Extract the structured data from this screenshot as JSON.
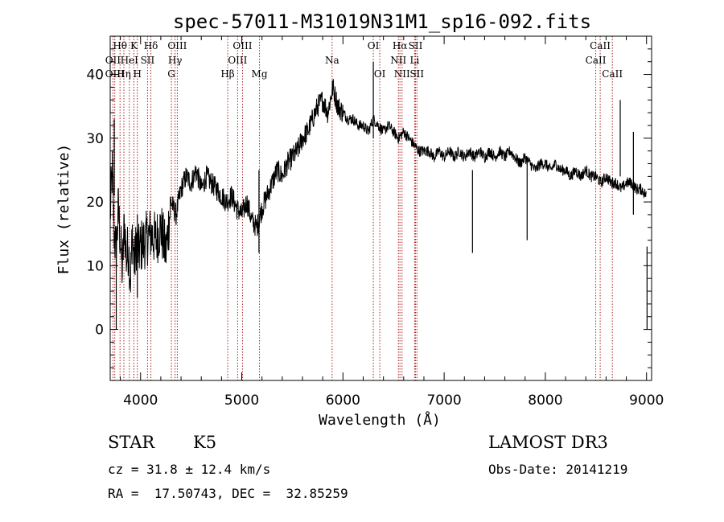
{
  "chart_data": {
    "type": "line",
    "title": "spec-57011-M31019N31M1_sp16-092.fits",
    "xlabel": "Wavelength (Å)",
    "ylabel": "Flux (relative)",
    "xlim": [
      3700,
      9050
    ],
    "ylim": [
      -8,
      46
    ],
    "xticks": [
      4000,
      5000,
      6000,
      7000,
      8000,
      9000
    ],
    "yticks": [
      0,
      10,
      20,
      30,
      40
    ],
    "grid": false,
    "series": [
      {
        "name": "flux",
        "x": [
          3700,
          3720,
          3740,
          3760,
          3780,
          3800,
          3820,
          3840,
          3860,
          3880,
          3900,
          3920,
          3940,
          3960,
          3980,
          4000,
          4050,
          4100,
          4150,
          4200,
          4250,
          4300,
          4350,
          4400,
          4450,
          4500,
          4550,
          4600,
          4650,
          4700,
          4750,
          4800,
          4850,
          4900,
          4950,
          5000,
          5050,
          5100,
          5150,
          5200,
          5250,
          5300,
          5350,
          5400,
          5450,
          5500,
          5550,
          5600,
          5650,
          5700,
          5750,
          5800,
          5850,
          5900,
          5950,
          6000,
          6050,
          6100,
          6150,
          6200,
          6250,
          6300,
          6350,
          6400,
          6450,
          6500,
          6550,
          6600,
          6650,
          6700,
          6750,
          6800,
          6850,
          6900,
          6950,
          7000,
          7050,
          7100,
          7150,
          7200,
          7250,
          7300,
          7350,
          7400,
          7450,
          7500,
          7550,
          7600,
          7650,
          7700,
          7750,
          7800,
          7850,
          7900,
          7950,
          8000,
          8050,
          8100,
          8150,
          8200,
          8250,
          8300,
          8350,
          8400,
          8450,
          8500,
          8550,
          8600,
          8650,
          8700,
          8750,
          8800,
          8850,
          8900,
          8950,
          9000
        ],
        "y": [
          18,
          25,
          15,
          12,
          19,
          14,
          9,
          17,
          11,
          13,
          8,
          15,
          10,
          14,
          12,
          13,
          14,
          15,
          14,
          16,
          12,
          20,
          18,
          22,
          24,
          23,
          25,
          22,
          24,
          23,
          22,
          21,
          20,
          21,
          19,
          18,
          20,
          17,
          16,
          19,
          21,
          23,
          25,
          24,
          26,
          27,
          28,
          30,
          31,
          33,
          35,
          36,
          34,
          38,
          35,
          34,
          33,
          33,
          32,
          32,
          31,
          33,
          32,
          31,
          32,
          31,
          30,
          31,
          30,
          29,
          28,
          28,
          28,
          27,
          28,
          27,
          28,
          27,
          28,
          27,
          28,
          27,
          28,
          27,
          28,
          27,
          28,
          27,
          28,
          27,
          26,
          27,
          26,
          25,
          26,
          26,
          25,
          26,
          25,
          25,
          24,
          25,
          24,
          25,
          24,
          24,
          23,
          24,
          23,
          23,
          22,
          23,
          23,
          22,
          22,
          21
        ]
      }
    ],
    "dips": [
      {
        "x": 3760,
        "y": 0
      },
      {
        "x": 3968,
        "y": 5
      },
      {
        "x": 5170,
        "y": 12
      },
      {
        "x": 7280,
        "y": 12
      },
      {
        "x": 7820,
        "y": 14
      },
      {
        "x": 8870,
        "y": 18
      },
      {
        "x": 9005,
        "y": 0
      }
    ],
    "spikes": [
      {
        "x": 3740,
        "y": 33
      },
      {
        "x": 6300,
        "y": 42
      },
      {
        "x": 8740,
        "y": 36
      }
    ],
    "lines": [
      {
        "label": "Hθ",
        "x": 3797,
        "row": 0
      },
      {
        "label": "OII",
        "x": 3727,
        "row": 1
      },
      {
        "label": "OIII",
        "x": 3745,
        "row": 2
      },
      {
        "label": "K",
        "x": 3934,
        "row": 0
      },
      {
        "label": "HeI",
        "x": 3889,
        "row": 1
      },
      {
        "label": "Hη",
        "x": 3835,
        "row": 2
      },
      {
        "label": "SII",
        "x": 4069,
        "row": 1
      },
      {
        "label": "H",
        "x": 3968,
        "row": 2
      },
      {
        "label": "Hδ",
        "x": 4102,
        "row": 0
      },
      {
        "label": "OIII",
        "x": 4363,
        "row": 0
      },
      {
        "label": "Hγ",
        "x": 4341,
        "row": 1
      },
      {
        "label": "G",
        "x": 4305,
        "row": 2
      },
      {
        "label": "OIII",
        "x": 5007,
        "row": 0
      },
      {
        "label": "OIII",
        "x": 4959,
        "row": 1
      },
      {
        "label": "Hβ",
        "x": 4861,
        "row": 2
      },
      {
        "label": "Mg",
        "x": 5175,
        "row": 2
      },
      {
        "label": "Na",
        "x": 5893,
        "row": 1
      },
      {
        "label": "OI",
        "x": 6300,
        "row": 0
      },
      {
        "label": "OI",
        "x": 6364,
        "row": 2
      },
      {
        "label": "Hα",
        "x": 6563,
        "row": 0
      },
      {
        "label": "SII",
        "x": 6717,
        "row": 0
      },
      {
        "label": "NII",
        "x": 6548,
        "row": 1
      },
      {
        "label": "Li",
        "x": 6708,
        "row": 1
      },
      {
        "label": "NII",
        "x": 6584,
        "row": 2
      },
      {
        "label": "SII",
        "x": 6731,
        "row": 2
      },
      {
        "label": "CaII",
        "x": 8542,
        "row": 0
      },
      {
        "label": "CaII",
        "x": 8498,
        "row": 1
      },
      {
        "label": "CaII",
        "x": 8662,
        "row": 2
      }
    ]
  },
  "info": {
    "class_label": "STAR",
    "subclass_label": "K5",
    "survey": "LAMOST DR3",
    "cz": "cz = 31.8 ± 12.4 km/s",
    "obs_date": "Obs-Date: 20141219",
    "coords": "RA =  17.50743, DEC =  32.85259"
  },
  "colors": {
    "line_marker": "#b02020",
    "spectrum": "#000000"
  }
}
